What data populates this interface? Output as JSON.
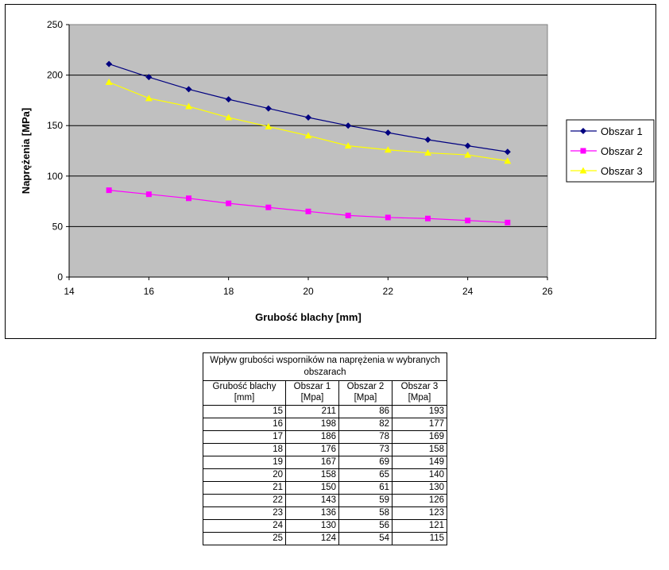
{
  "chart_data": {
    "type": "line",
    "title": "",
    "xlabel": "Grubość blachy [mm]",
    "ylabel": "Naprężenia [MPa]",
    "xlim": [
      14,
      26
    ],
    "ylim": [
      0,
      250
    ],
    "xticks": [
      14,
      16,
      18,
      20,
      22,
      24,
      26
    ],
    "yticks": [
      0,
      50,
      100,
      150,
      200,
      250
    ],
    "grid": "horizontal",
    "legend": "right",
    "background": "#c0c0c0",
    "x": [
      15,
      16,
      17,
      18,
      19,
      20,
      21,
      22,
      23,
      24,
      25
    ],
    "series": [
      {
        "name": "Obszar 1",
        "color": "#000080",
        "marker": "diamond",
        "values": [
          211,
          198,
          186,
          176,
          167,
          158,
          150,
          143,
          136,
          130,
          124
        ]
      },
      {
        "name": "Obszar 2",
        "color": "#ff00ff",
        "marker": "square",
        "values": [
          86,
          82,
          78,
          73,
          69,
          65,
          61,
          59,
          58,
          56,
          54
        ]
      },
      {
        "name": "Obszar 3",
        "color": "#ffff00",
        "marker": "triangle",
        "values": [
          193,
          177,
          169,
          158,
          149,
          140,
          130,
          126,
          123,
          121,
          115
        ]
      }
    ]
  },
  "table": {
    "caption": "Wpływ grubości wsporników na naprężenia w wybranych obszarach",
    "headers": [
      "Grubość blachy [mm]",
      "Obszar 1 [Mpa]",
      "Obszar 2 [Mpa]",
      "Obszar 3 [Mpa]"
    ],
    "rows": [
      [
        15,
        211,
        86,
        193
      ],
      [
        16,
        198,
        82,
        177
      ],
      [
        17,
        186,
        78,
        169
      ],
      [
        18,
        176,
        73,
        158
      ],
      [
        19,
        167,
        69,
        149
      ],
      [
        20,
        158,
        65,
        140
      ],
      [
        21,
        150,
        61,
        130
      ],
      [
        22,
        143,
        59,
        126
      ],
      [
        23,
        136,
        58,
        123
      ],
      [
        24,
        130,
        56,
        121
      ],
      [
        25,
        124,
        54,
        115
      ]
    ]
  }
}
